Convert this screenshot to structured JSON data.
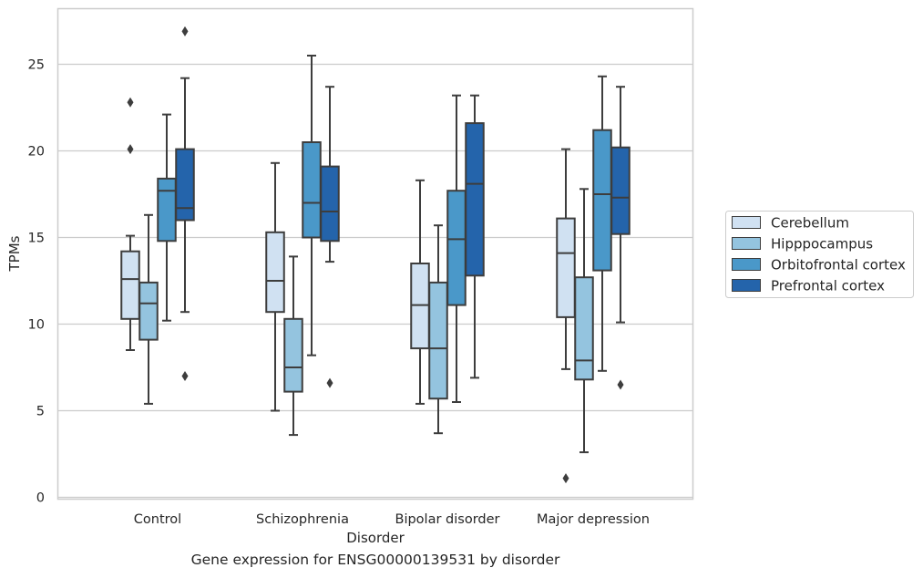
{
  "caption": "Gene expression for ENSG00000139531 by disorder",
  "chart_data": {
    "type": "box",
    "title": "",
    "xlabel": "Disorder",
    "ylabel": "TPMs",
    "ylim": [
      0,
      28
    ],
    "yticks": [
      0,
      5,
      10,
      15,
      20,
      25
    ],
    "grid": "horizontal",
    "legend_position": "right",
    "categories": [
      "Control",
      "Schizophrenia",
      "Bipolar disorder",
      "Major depression"
    ],
    "series": [
      {
        "name": "Cerebellum",
        "color": "#d0e1f2",
        "boxes": [
          {
            "whisker_low": 8.5,
            "q1": 10.3,
            "median": 12.6,
            "q3": 14.2,
            "whisker_high": 15.1,
            "outliers": [
              20.1,
              22.8
            ]
          },
          {
            "whisker_low": 5.0,
            "q1": 10.7,
            "median": 12.5,
            "q3": 15.3,
            "whisker_high": 19.3,
            "outliers": []
          },
          {
            "whisker_low": 5.4,
            "q1": 8.6,
            "median": 11.1,
            "q3": 13.5,
            "whisker_high": 18.3,
            "outliers": []
          },
          {
            "whisker_low": 7.4,
            "q1": 10.4,
            "median": 14.1,
            "q3": 16.1,
            "whisker_high": 20.1,
            "outliers": [
              1.1
            ]
          }
        ]
      },
      {
        "name": "Hipppocampus",
        "color": "#94c4df",
        "boxes": [
          {
            "whisker_low": 5.4,
            "q1": 9.1,
            "median": 11.2,
            "q3": 12.4,
            "whisker_high": 16.3,
            "outliers": []
          },
          {
            "whisker_low": 3.6,
            "q1": 6.1,
            "median": 7.5,
            "q3": 10.3,
            "whisker_high": 13.9,
            "outliers": []
          },
          {
            "whisker_low": 3.7,
            "q1": 5.7,
            "median": 8.6,
            "q3": 12.4,
            "whisker_high": 15.7,
            "outliers": []
          },
          {
            "whisker_low": 2.6,
            "q1": 6.8,
            "median": 7.9,
            "q3": 12.7,
            "whisker_high": 17.8,
            "outliers": []
          }
        ]
      },
      {
        "name": "Orbitofrontal cortex",
        "color": "#4a98c9",
        "boxes": [
          {
            "whisker_low": 10.2,
            "q1": 14.8,
            "median": 17.7,
            "q3": 18.4,
            "whisker_high": 22.1,
            "outliers": []
          },
          {
            "whisker_low": 8.2,
            "q1": 15.0,
            "median": 17.0,
            "q3": 20.5,
            "whisker_high": 25.5,
            "outliers": []
          },
          {
            "whisker_low": 5.5,
            "q1": 11.1,
            "median": 14.9,
            "q3": 17.7,
            "whisker_high": 23.2,
            "outliers": []
          },
          {
            "whisker_low": 7.3,
            "q1": 13.1,
            "median": 17.5,
            "q3": 21.2,
            "whisker_high": 24.3,
            "outliers": []
          }
        ]
      },
      {
        "name": "Prefrontal cortex",
        "color": "#2464ab",
        "boxes": [
          {
            "whisker_low": 10.7,
            "q1": 16.0,
            "median": 16.7,
            "q3": 20.1,
            "whisker_high": 24.2,
            "outliers": [
              7.0,
              26.9
            ]
          },
          {
            "whisker_low": 13.6,
            "q1": 14.8,
            "median": 16.5,
            "q3": 19.1,
            "whisker_high": 23.7,
            "outliers": [
              6.6
            ]
          },
          {
            "whisker_low": 6.9,
            "q1": 12.8,
            "median": 18.1,
            "q3": 21.6,
            "whisker_high": 23.2,
            "outliers": []
          },
          {
            "whisker_low": 10.1,
            "q1": 15.2,
            "median": 17.3,
            "q3": 20.2,
            "whisker_high": 23.7,
            "outliers": [
              6.5
            ]
          }
        ]
      }
    ]
  }
}
